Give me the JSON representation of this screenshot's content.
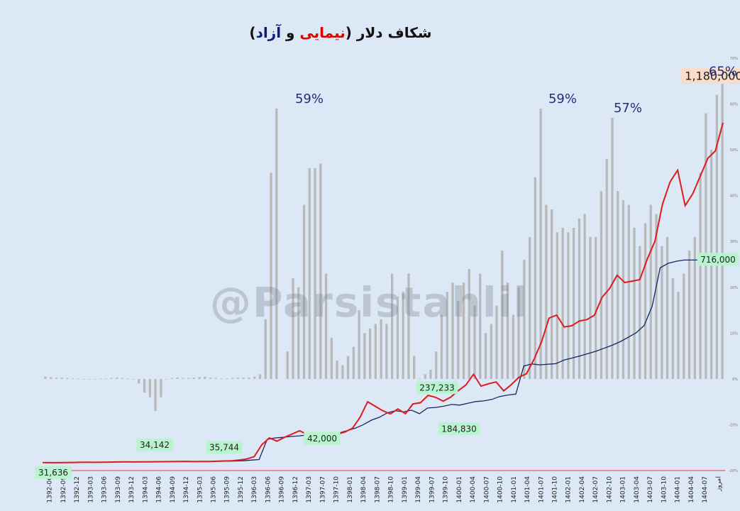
{
  "title": {
    "main": "شکاف دلار",
    "open": "(",
    "nimai": "نیمایی",
    "and": " و ",
    "azad": "آزاد",
    "close": ")"
  },
  "watermark": "@Parsistahlil",
  "colors": {
    "background": "#dde8f6",
    "gap_bars": "#b9b9b9",
    "free_market_line": "#e01b1b",
    "nima_line": "#14275e",
    "value_box": "#b8f5cf",
    "last_value_box": "#f9dccb",
    "peak_label": "#1f2f7a"
  },
  "chart_data": {
    "type": "bar+line",
    "x_tick_labels": [
      "1392-06",
      "1392-09",
      "1392-12",
      "1393-03",
      "1393-06",
      "1393-09",
      "1393-12",
      "1394-03",
      "1394-06",
      "1394-09",
      "1394-12",
      "1395-03",
      "1395-06",
      "1395-09",
      "1395-12",
      "1396-03",
      "1396-06",
      "1396-09",
      "1396-12",
      "1397-03",
      "1397-07",
      "1397-10",
      "1398-01",
      "1398-04",
      "1398-07",
      "1398-10",
      "1399-01",
      "1399-04",
      "1399-07",
      "1399-10",
      "1400-01",
      "1400-04",
      "1400-07",
      "1400-10",
      "1401-01",
      "1401-04",
      "1401-07",
      "1401-10",
      "1402-01",
      "1402-04",
      "1402-07",
      "1402-10",
      "1403-01",
      "1403-04",
      "1403-07",
      "1403-10",
      "1404-01",
      "1404-04",
      "1404-07",
      "امروز"
    ],
    "right_axis": {
      "ticks": [
        "70%",
        "60%",
        "50%",
        "40%",
        "30%",
        "20%",
        "10%",
        "0%",
        "-10%",
        "-20%"
      ],
      "ylim": [
        -20,
        70
      ]
    },
    "gap_percent": {
      "name": "",
      "values": [
        0.5,
        0.4,
        0.3,
        0.3,
        0.2,
        0.1,
        0.1,
        0,
        0,
        0,
        0.1,
        0.1,
        0.2,
        0.3,
        0.2,
        0.1,
        0,
        -1,
        -3,
        -4,
        -7,
        -4,
        0,
        0.2,
        0.3,
        0.2,
        0.2,
        0.3,
        0.4,
        0.5,
        0.3,
        0.2,
        0.1,
        0.1,
        0.2,
        0.3,
        0.3,
        0.3,
        0.5,
        1,
        13,
        45,
        59,
        null,
        6,
        22,
        20,
        38,
        46,
        46,
        47,
        23,
        9,
        4,
        3,
        5,
        7,
        15,
        10,
        11,
        12,
        13,
        12,
        23,
        18,
        19,
        23,
        5,
        0,
        1,
        2,
        6,
        14,
        19,
        21,
        17,
        21,
        24,
        16,
        23,
        10,
        12,
        16,
        28,
        21,
        14,
        20,
        26,
        31,
        44,
        59,
        38,
        37,
        32,
        33,
        32,
        33,
        35,
        36,
        31,
        31,
        41,
        48,
        57,
        41,
        39,
        38,
        33,
        29,
        34,
        38,
        36,
        29,
        31,
        22,
        19,
        23,
        28,
        31,
        45,
        58,
        50,
        62,
        65
      ]
    },
    "free_market_usd": {
      "name": "",
      "values": [
        31636,
        31400,
        31500,
        31800,
        32100,
        32500,
        32800,
        32700,
        33000,
        33300,
        33700,
        34142,
        33900,
        34200,
        34400,
        34600,
        34700,
        34900,
        35200,
        35744,
        35100,
        35300,
        35600,
        36200,
        37100,
        38000,
        40000,
        44000,
        52000,
        92000,
        115000,
        104000,
        117000,
        128000,
        139000,
        127000,
        119000,
        113000,
        120000,
        128000,
        135000,
        148000,
        185000,
        237233,
        222000,
        207000,
        196000,
        213000,
        197000,
        230000,
        234000,
        259000,
        252000,
        239000,
        253000,
        275000,
        294000,
        330000,
        290000,
        298000,
        304000,
        274000,
        295000,
        320000,
        332000,
        380000,
        440000,
        520000,
        530000,
        490000,
        494000,
        510000,
        515000,
        530000,
        590000,
        620000,
        665000,
        640000,
        645000,
        650000,
        720000,
        780000,
        905000,
        980000,
        1020000,
        900000,
        940000,
        1000000,
        1060000,
        1085000,
        1180000
      ]
    },
    "nima_usd": {
      "name": "",
      "values": [
        31636,
        31600,
        31700,
        31900,
        32200,
        32500,
        32800,
        33000,
        33200,
        33500,
        33800,
        34000,
        34200,
        34400,
        34600,
        34800,
        35000,
        35200,
        35400,
        35500,
        35600,
        35800,
        36000,
        36500,
        37000,
        38000,
        40000,
        42000,
        110000,
        115000,
        117000,
        120000,
        122000,
        125000,
        128000,
        129000,
        130000,
        132000,
        140000,
        148000,
        160000,
        175000,
        184830,
        200000,
        207000,
        203000,
        209000,
        197000,
        216000,
        218000,
        222000,
        228000,
        226000,
        232000,
        238000,
        240000,
        245000,
        255000,
        260000,
        263000,
        358000,
        365000,
        362000,
        364000,
        366000,
        378000,
        385000,
        392000,
        400000,
        408000,
        418000,
        428000,
        440000,
        455000,
        470000,
        495000,
        560000,
        690000,
        705000,
        712000,
        716000,
        716000,
        716000
      ]
    },
    "value_labels": [
      "31,636",
      "34,142",
      "35,744",
      "42,000",
      "237,233",
      "184,830",
      "716,000",
      "1,180,000"
    ],
    "peak_labels": [
      "59%",
      "59%",
      "57%",
      "65%"
    ]
  }
}
